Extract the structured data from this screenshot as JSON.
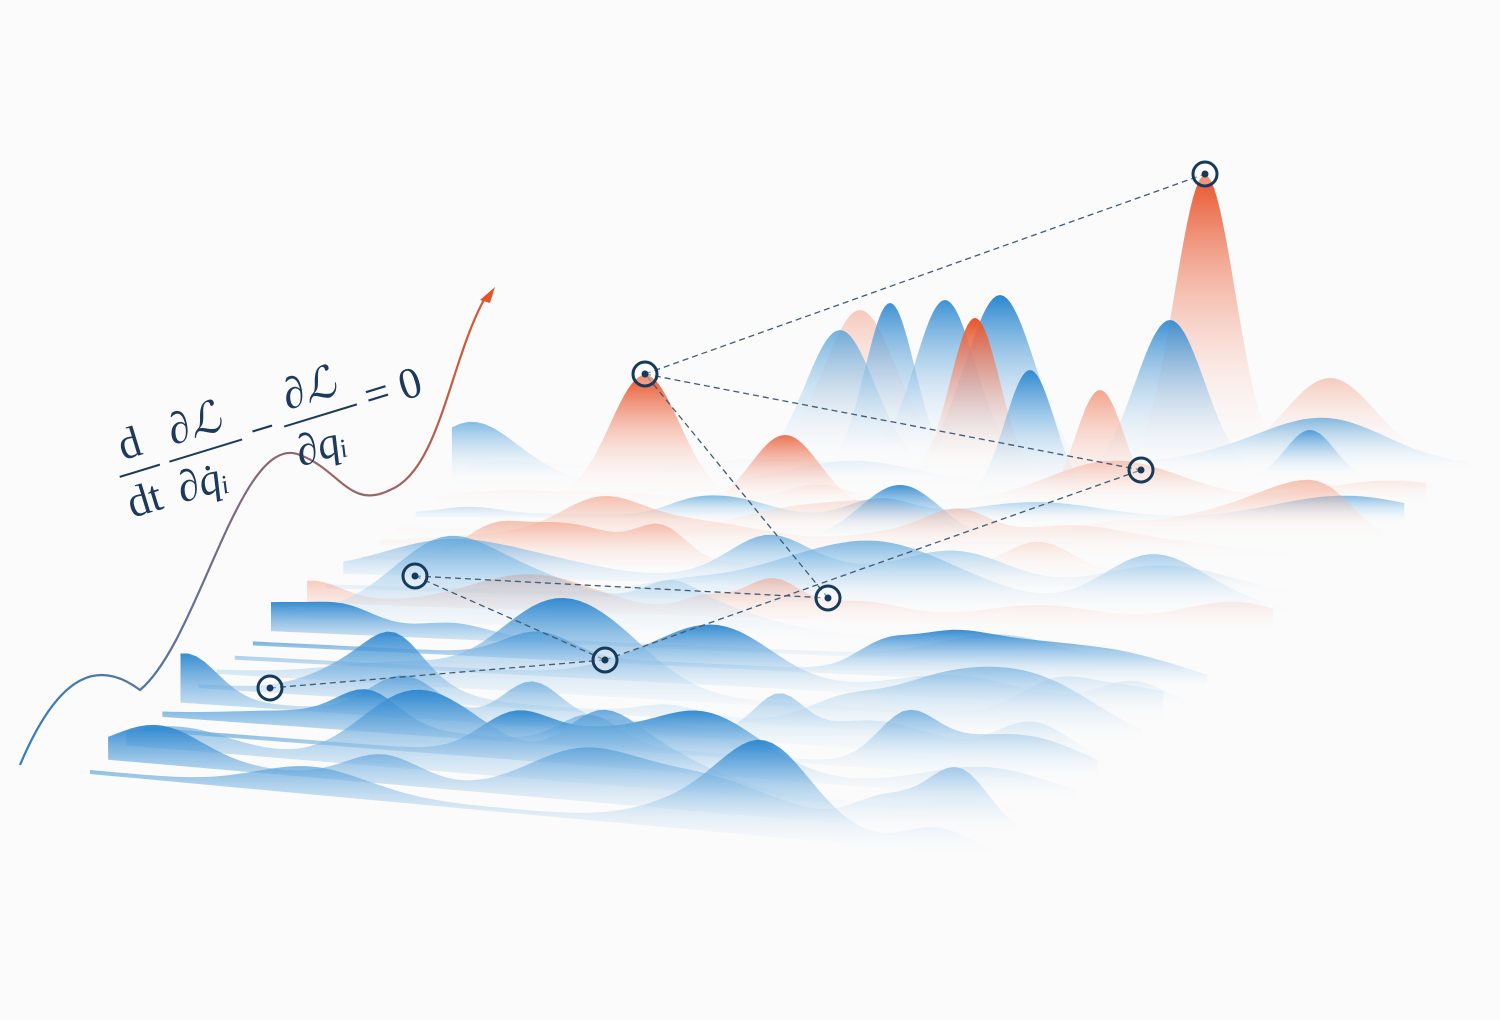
{
  "equation": {
    "d": "d",
    "dt": "dt",
    "dL_num1": "∂ℒ",
    "dq_dot": "∂q̇ᵢ",
    "minus": "−",
    "dL_num2": "∂ℒ",
    "dq": "∂qᵢ",
    "equals": "= 0"
  }
}
